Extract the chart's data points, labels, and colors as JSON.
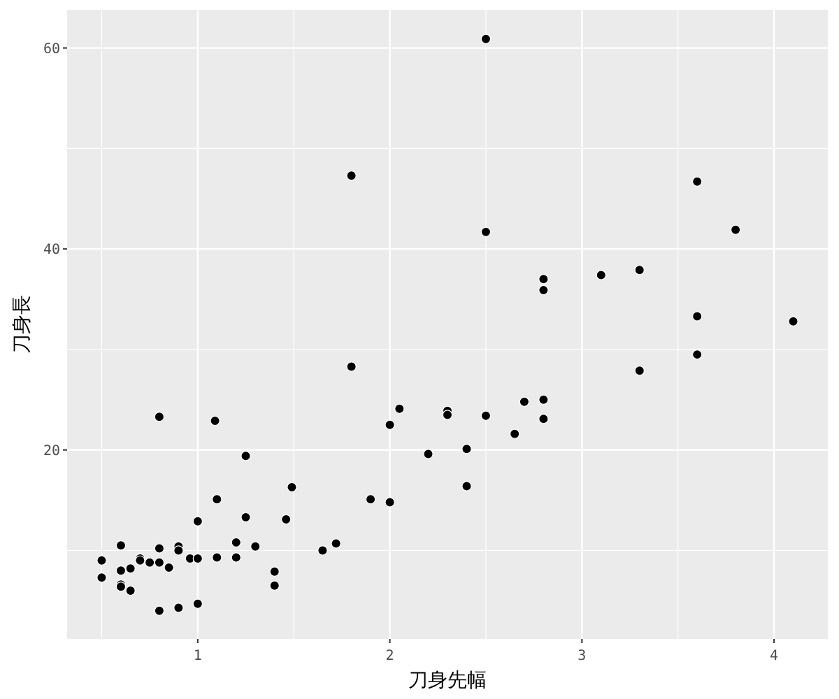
{
  "chart_data": {
    "type": "scatter",
    "xlabel": "刀身先幅",
    "ylabel": "刀身長",
    "xlim": [
      0.32,
      4.28
    ],
    "ylim": [
      1.2,
      63.8
    ],
    "xticks": [
      1,
      2,
      3,
      4
    ],
    "yticks": [
      20,
      40,
      60
    ],
    "grid": true,
    "marker": "circle",
    "series": [
      {
        "color": "#000000",
        "x": [
          2.5,
          1.8,
          3.6,
          2.5,
          3.8,
          3.3,
          3.1,
          2.8,
          2.8,
          3.6,
          4.1,
          1.8,
          3.6,
          3.3,
          2.8,
          2.7,
          2.05,
          2.3,
          2.3,
          2.5,
          0.8,
          1.09,
          2.8,
          2.0,
          2.65,
          2.4,
          2.2,
          1.25,
          1.49,
          2.4,
          1.1,
          1.9,
          2.0,
          1.0,
          1.25,
          1.46,
          1.2,
          1.3,
          1.72,
          1.65,
          0.6,
          0.8,
          0.9,
          0.9,
          0.7,
          0.7,
          0.75,
          0.5,
          0.8,
          0.85,
          0.65,
          0.6,
          0.5,
          0.96,
          1.0,
          1.1,
          1.2,
          1.4,
          1.4,
          0.6,
          0.6,
          0.65,
          0.8,
          0.9,
          1.0
        ],
        "values": [
          60.9,
          47.3,
          46.7,
          41.7,
          41.9,
          37.9,
          37.4,
          37.0,
          35.9,
          33.3,
          32.8,
          28.3,
          29.5,
          27.9,
          25.0,
          24.8,
          24.1,
          23.9,
          23.5,
          23.4,
          23.3,
          22.9,
          23.1,
          22.5,
          21.6,
          20.1,
          19.6,
          19.4,
          16.3,
          16.4,
          15.1,
          15.1,
          14.8,
          12.9,
          13.3,
          13.1,
          10.8,
          10.4,
          10.7,
          10.0,
          10.5,
          10.2,
          10.4,
          10.0,
          9.2,
          9.0,
          8.8,
          9.0,
          8.8,
          8.3,
          8.2,
          8.0,
          7.3,
          9.2,
          9.2,
          9.3,
          9.3,
          7.9,
          6.5,
          6.6,
          6.4,
          6.0,
          4.0,
          4.3,
          4.7
        ]
      }
    ]
  }
}
